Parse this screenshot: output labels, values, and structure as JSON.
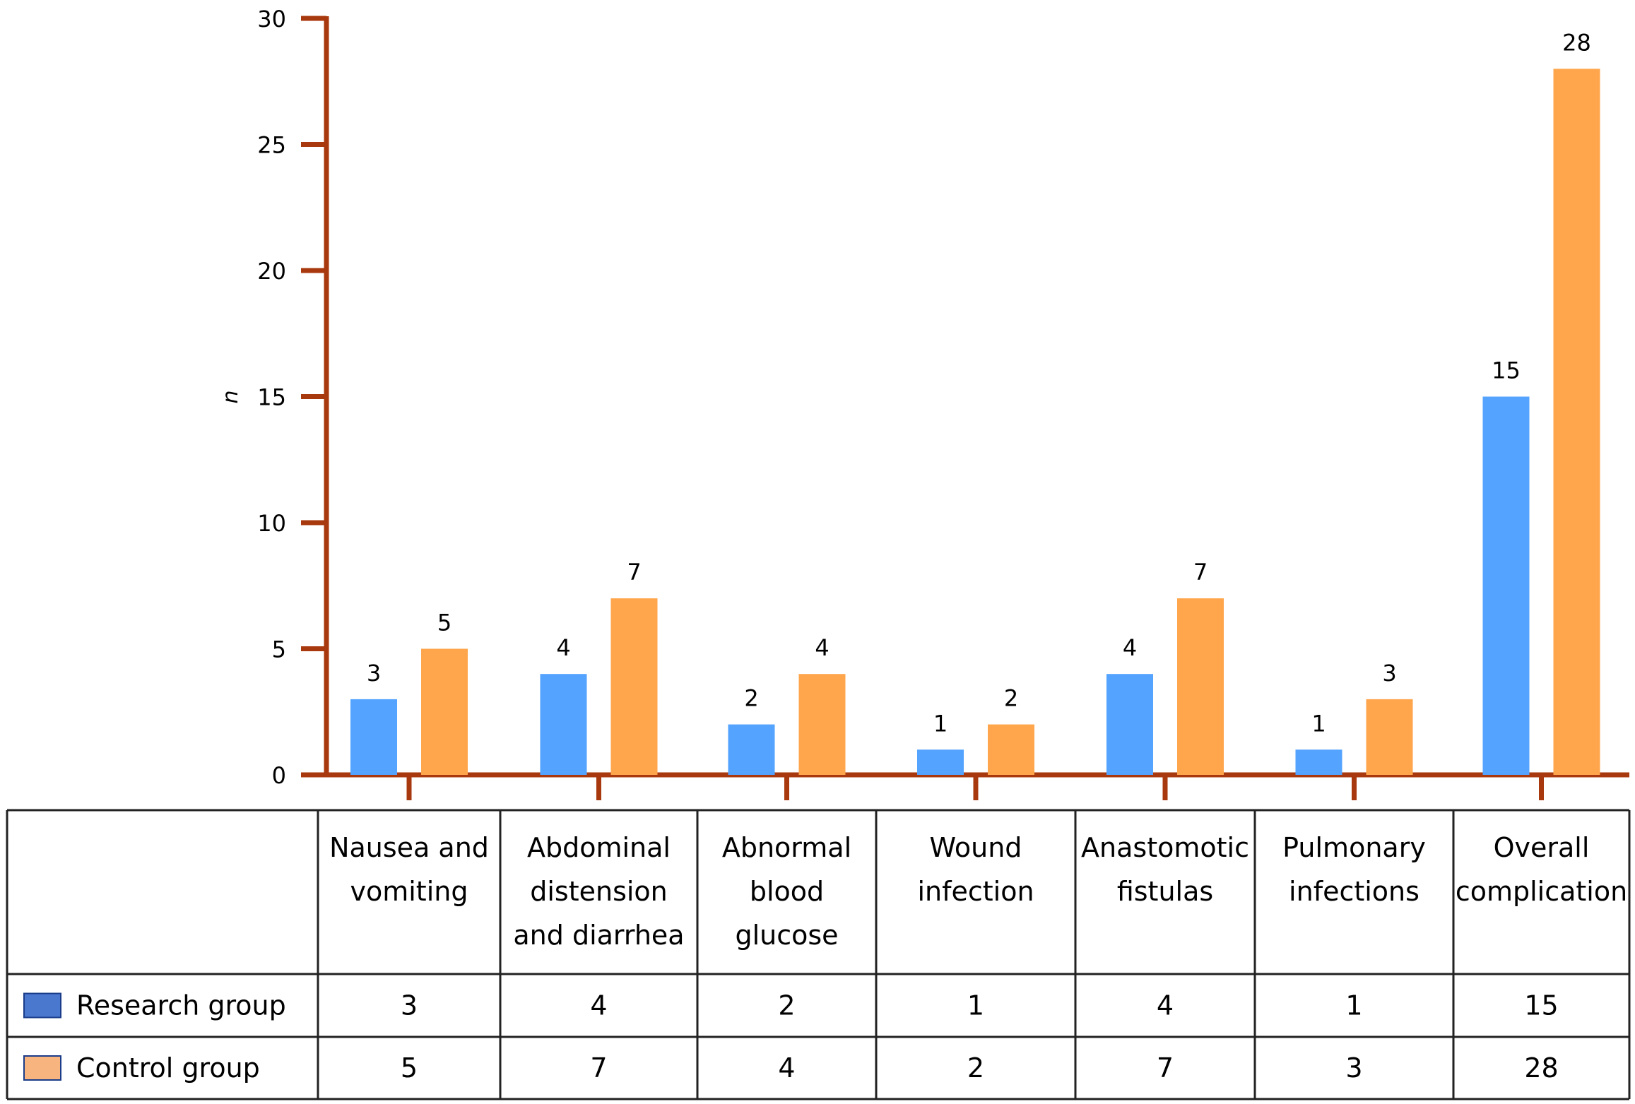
{
  "chart_data": {
    "type": "bar",
    "title": "",
    "xlabel": "",
    "ylabel": "n",
    "ylim": [
      0,
      30
    ],
    "yticks": [
      0,
      5,
      10,
      15,
      20,
      25,
      30
    ],
    "categories": [
      [
        "Nausea and",
        "vomiting"
      ],
      [
        "Abdominal",
        "distension",
        "and diarrhea"
      ],
      [
        "Abnormal",
        "blood",
        "glucose"
      ],
      [
        "Wound",
        "infection"
      ],
      [
        "Anastomotic",
        "fistulas"
      ],
      [
        "Pulmonary",
        "infections"
      ],
      [
        "Overall",
        "complication"
      ]
    ],
    "series": [
      {
        "name": "Research group",
        "values": [
          3,
          4,
          2,
          1,
          4,
          1,
          15
        ],
        "color": "#54a3ff",
        "legend_color": "#4a78cf"
      },
      {
        "name": "Control group",
        "values": [
          5,
          7,
          4,
          2,
          7,
          3,
          28
        ],
        "color": "#ffa64d",
        "legend_color": "#f7b47e"
      }
    ],
    "axis_color": "#a8380d",
    "legend": "data-table-below"
  }
}
